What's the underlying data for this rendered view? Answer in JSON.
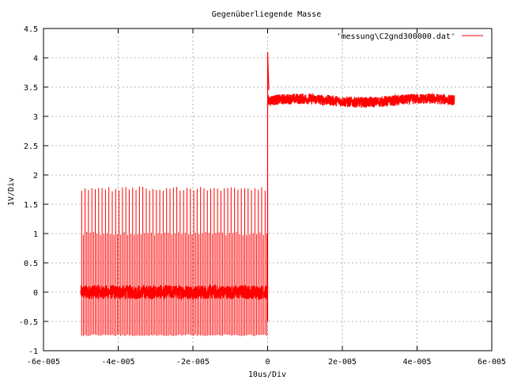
{
  "chart_data": {
    "type": "line",
    "title": "Gegenüberliegende Masse",
    "xlabel": "10us/Div",
    "ylabel": "1V/Div",
    "xlim": [
      -6e-05,
      6e-05
    ],
    "ylim": [
      -1,
      4.5
    ],
    "grid": true,
    "legend_position": "top-right",
    "x_ticks": [
      -6e-05,
      -4e-05,
      -2e-05,
      0,
      2e-05,
      4e-05,
      6e-05
    ],
    "x_tick_labels": [
      "-6e-005",
      "-4e-005",
      "-2e-005",
      "0",
      "2e-005",
      "4e-005",
      "6e-005"
    ],
    "y_ticks": [
      -1,
      -0.5,
      0,
      0.5,
      1,
      1.5,
      2,
      2.5,
      3,
      3.5,
      4,
      4.5
    ],
    "y_tick_labels": [
      "-1",
      "-0.5",
      "0",
      "0.5",
      "1",
      "1.5",
      "2",
      "2.5",
      "3",
      "3.5",
      "4",
      "4.5"
    ],
    "series": [
      {
        "name": "'messung\\C2gnd300000.dat'",
        "color": "#ff0000",
        "segments": [
          {
            "x_start": -5e-05,
            "x_end": 0,
            "baseline": 0.0,
            "noise_band": [
              -0.12,
              0.12
            ],
            "spike_max": [
              1.8,
              1.0
            ],
            "spike_min": -0.72
          },
          {
            "x_start": 0,
            "x_end": 5e-05,
            "baseline": 3.27,
            "noise_band": [
              3.12,
              3.38
            ],
            "peak_at_step": 4.1
          }
        ]
      }
    ]
  }
}
